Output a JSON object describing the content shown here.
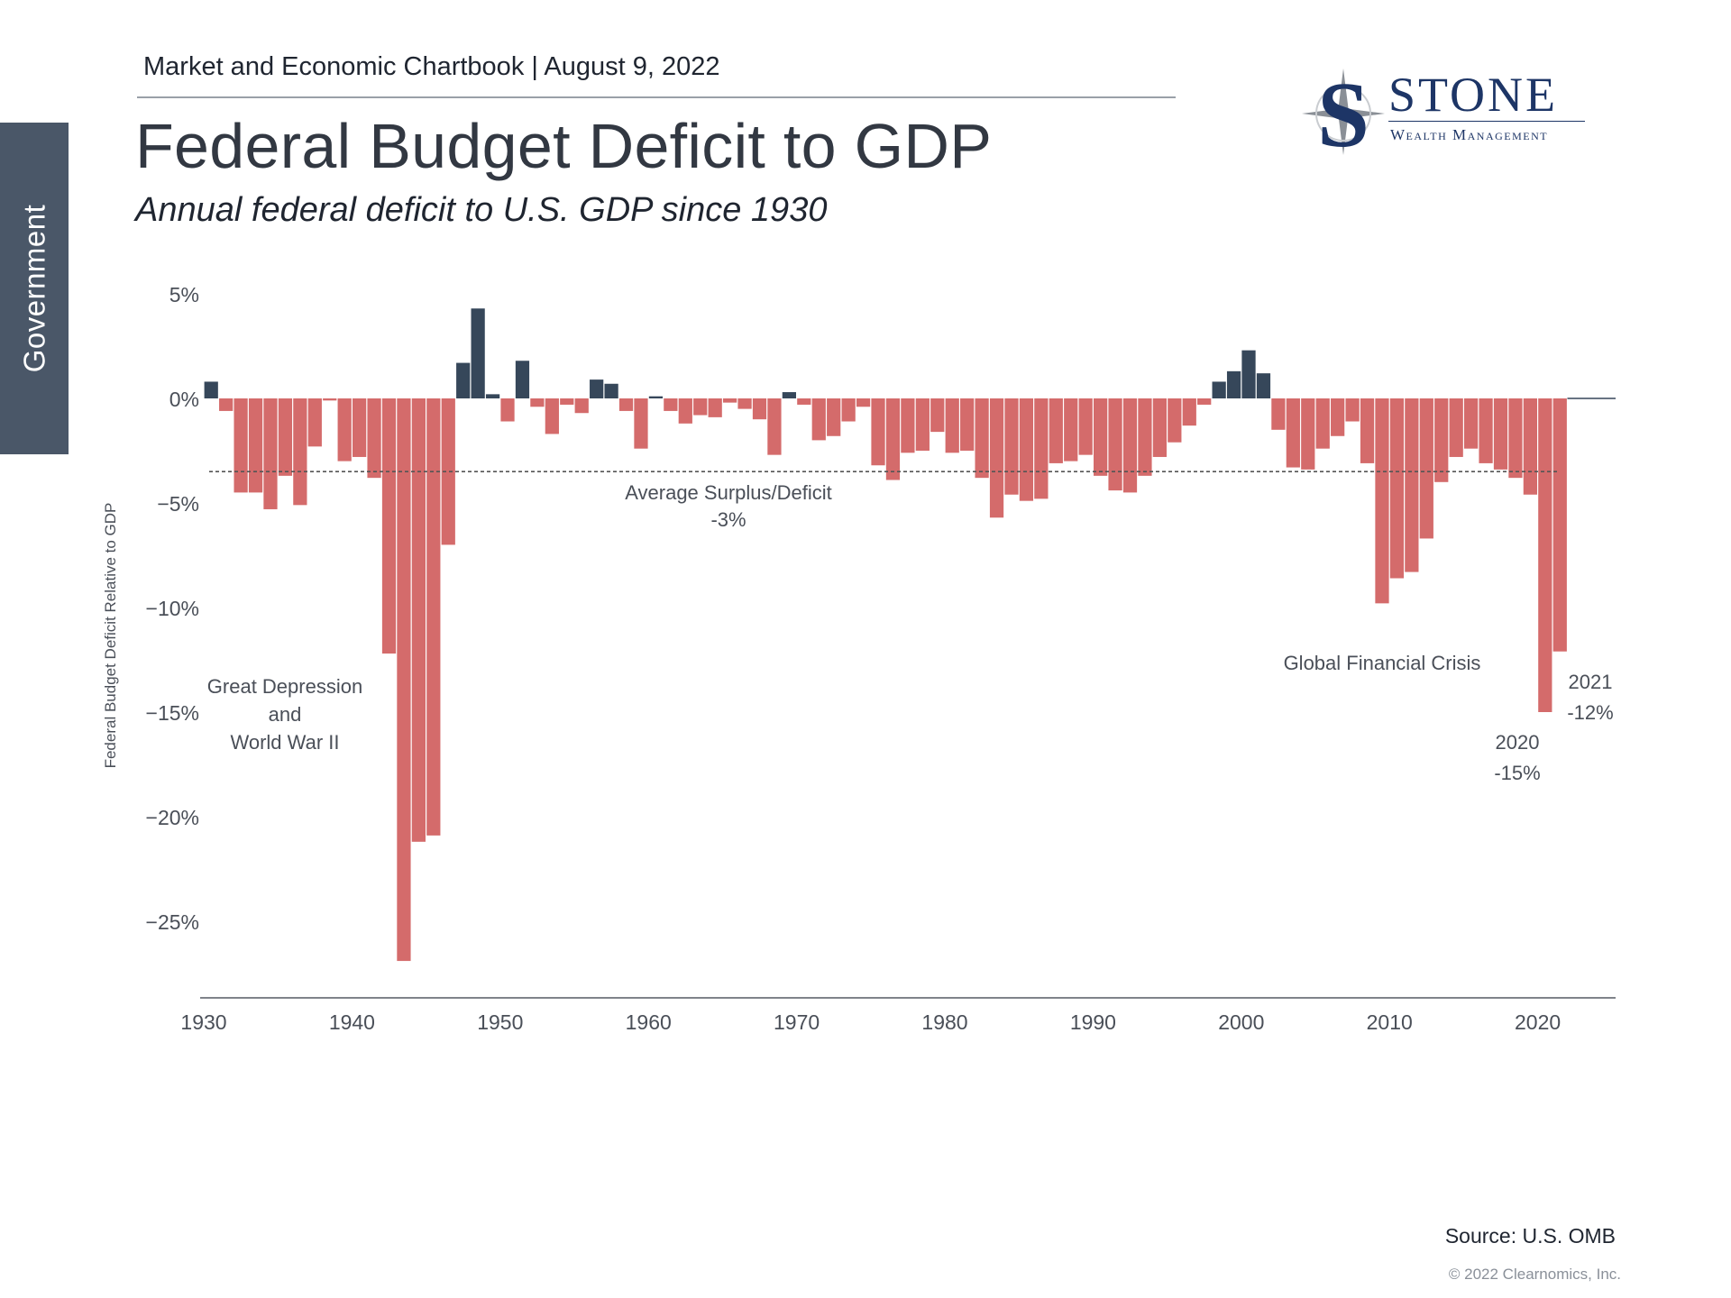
{
  "side_tab": {
    "label": "Government"
  },
  "header": {
    "line": "Market and Economic Chartbook | August 9, 2022"
  },
  "logo": {
    "wordmark": "STONE",
    "sub": "Wealth Management",
    "letter": "S"
  },
  "footer": {
    "source": "Source: U.S. OMB",
    "copyright": "© 2022 Clearnomics, Inc."
  },
  "colors": {
    "deficit": "#d46b6b",
    "surplus": "#36475a",
    "axis": "#555a63",
    "text": "#4a4f58"
  },
  "chart_data": {
    "type": "bar",
    "title": "Federal Budget Deficit to GDP",
    "subtitle": "Annual federal deficit to U.S. GDP since 1930",
    "ylabel": "Federal Budget Deficit Relative to GDP",
    "xlabel": "",
    "ylim": [
      -28.5,
      6
    ],
    "yticks": [
      5,
      0,
      -5,
      -10,
      -15,
      -20,
      -25
    ],
    "ytick_labels": [
      "5%",
      "0%",
      "−5%",
      "−10%",
      "−15%",
      "−20%",
      "−25%"
    ],
    "xticks": [
      1930,
      1940,
      1950,
      1960,
      1970,
      1980,
      1990,
      2000,
      2010,
      2020
    ],
    "xtick_labels": [
      "1930",
      "1940",
      "1950",
      "1960",
      "1970",
      "1980",
      "1990",
      "2000",
      "2010",
      "2020"
    ],
    "grid": false,
    "years": [
      1930,
      1931,
      1932,
      1933,
      1934,
      1935,
      1936,
      1937,
      1938,
      1939,
      1940,
      1941,
      1942,
      1943,
      1944,
      1945,
      1946,
      1947,
      1948,
      1949,
      1950,
      1951,
      1952,
      1953,
      1954,
      1955,
      1956,
      1957,
      1958,
      1959,
      1960,
      1961,
      1962,
      1963,
      1964,
      1965,
      1966,
      1967,
      1968,
      1969,
      1970,
      1971,
      1972,
      1973,
      1974,
      1975,
      1976,
      1977,
      1978,
      1979,
      1980,
      1981,
      1982,
      1983,
      1984,
      1985,
      1986,
      1987,
      1988,
      1989,
      1990,
      1991,
      1992,
      1993,
      1994,
      1995,
      1996,
      1997,
      1998,
      1999,
      2000,
      2001,
      2002,
      2003,
      2004,
      2005,
      2006,
      2007,
      2008,
      2009,
      2010,
      2011,
      2012,
      2013,
      2014,
      2015,
      2016,
      2017,
      2018,
      2019,
      2020,
      2021
    ],
    "values": [
      0.8,
      -0.6,
      -4.5,
      -4.5,
      -5.3,
      -3.7,
      -5.1,
      -2.3,
      -0.1,
      -3.0,
      -2.8,
      -3.8,
      -12.2,
      -26.9,
      -21.2,
      -20.9,
      -7.0,
      1.7,
      4.3,
      0.2,
      -1.1,
      1.8,
      -0.4,
      -1.7,
      -0.3,
      -0.7,
      0.9,
      0.7,
      -0.6,
      -2.4,
      0.1,
      -0.6,
      -1.2,
      -0.8,
      -0.9,
      -0.2,
      -0.5,
      -1.0,
      -2.7,
      0.3,
      -0.3,
      -2.0,
      -1.8,
      -1.1,
      -0.4,
      -3.2,
      -3.9,
      -2.6,
      -2.5,
      -1.6,
      -2.6,
      -2.5,
      -3.8,
      -5.7,
      -4.6,
      -4.9,
      -4.8,
      -3.1,
      -3.0,
      -2.7,
      -3.7,
      -4.4,
      -4.5,
      -3.7,
      -2.8,
      -2.1,
      -1.3,
      -0.3,
      0.8,
      1.3,
      2.3,
      1.2,
      -1.5,
      -3.3,
      -3.4,
      -2.4,
      -1.8,
      -1.1,
      -3.1,
      -9.8,
      -8.6,
      -8.3,
      -6.7,
      -4.0,
      -2.8,
      -2.4,
      -3.1,
      -3.4,
      -3.8,
      -4.6,
      -15.0,
      -12.1
    ],
    "average": -3.5,
    "annotations": {
      "average_label": "Average Surplus/Deficit",
      "average_value": "-3%",
      "depression_line1": "Great Depression",
      "depression_line2": "and",
      "depression_line3": "World War II",
      "gfc": "Global Financial Crisis",
      "y2021_year": "2021",
      "y2021_value": "-12%",
      "y2020_year": "2020",
      "y2020_value": "-15%"
    }
  }
}
